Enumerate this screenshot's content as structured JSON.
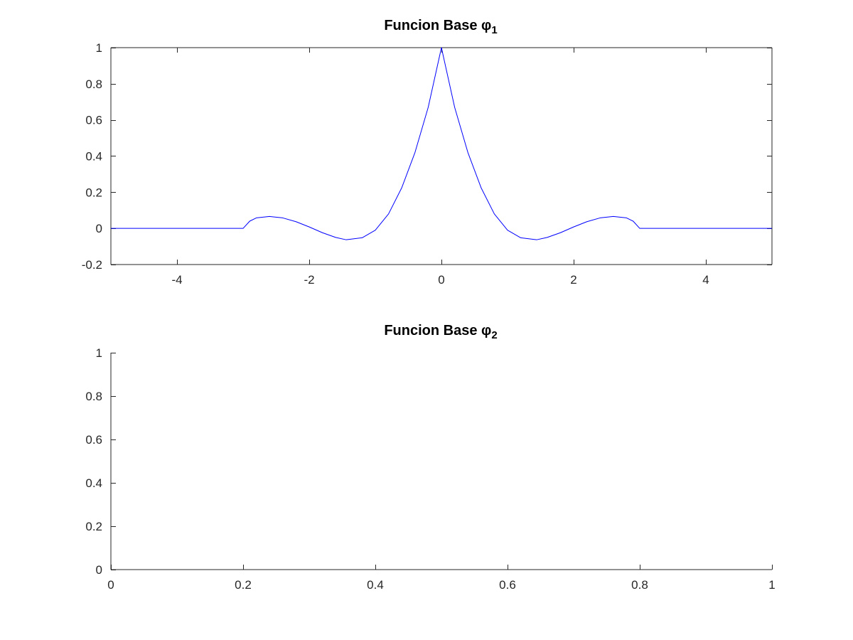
{
  "chart_data": [
    {
      "type": "line",
      "title": "Funcion Base φ",
      "title_subscript": "1",
      "xlabel": "",
      "ylabel": "",
      "xlim": [
        -5,
        5
      ],
      "ylim": [
        -0.2,
        1
      ],
      "box": true,
      "grid": false,
      "xticks": [
        -4,
        -2,
        0,
        2,
        4
      ],
      "xtick_labels": [
        "-4",
        "-2",
        "0",
        "2",
        "4"
      ],
      "yticks": [
        -0.2,
        0,
        0.2,
        0.4,
        0.6,
        0.8,
        1
      ],
      "ytick_labels": [
        "-0.2",
        "0",
        "0.2",
        "0.4",
        "0.6",
        "0.8",
        "1"
      ],
      "series": [
        {
          "color": "#0000ff",
          "x": [
            -5,
            -4,
            -3,
            -2.9,
            -2.8,
            -2.6,
            -2.4,
            -2.2,
            -2.0,
            -1.8,
            -1.6,
            -1.44,
            -1.2,
            -1.0,
            -0.8,
            -0.6,
            -0.4,
            -0.2,
            0,
            0.2,
            0.4,
            0.6,
            0.8,
            1.0,
            1.2,
            1.44,
            1.6,
            1.8,
            2.0,
            2.2,
            2.4,
            2.6,
            2.8,
            2.9,
            3,
            4,
            5
          ],
          "y": [
            0,
            0,
            0,
            0.04,
            0.058,
            0.066,
            0.058,
            0.037,
            0.008,
            -0.024,
            -0.05,
            -0.063,
            -0.052,
            -0.01,
            0.08,
            0.225,
            0.42,
            0.67,
            1,
            0.67,
            0.42,
            0.225,
            0.08,
            -0.01,
            -0.052,
            -0.063,
            -0.05,
            -0.024,
            0.008,
            0.037,
            0.058,
            0.066,
            0.058,
            0.04,
            0,
            0,
            0
          ]
        }
      ]
    },
    {
      "type": "line",
      "title": "Funcion Base φ",
      "title_subscript": "2",
      "xlabel": "",
      "ylabel": "",
      "xlim": [
        0,
        1
      ],
      "ylim": [
        0,
        1
      ],
      "box": false,
      "grid": false,
      "xticks": [
        0,
        0.2,
        0.4,
        0.6,
        0.8,
        1
      ],
      "xtick_labels": [
        "0",
        "0.2",
        "0.4",
        "0.6",
        "0.8",
        "1"
      ],
      "yticks": [
        0,
        0.2,
        0.4,
        0.6,
        0.8,
        1
      ],
      "ytick_labels": [
        "0",
        "0.2",
        "0.4",
        "0.6",
        "0.8",
        "1"
      ],
      "series": []
    }
  ]
}
